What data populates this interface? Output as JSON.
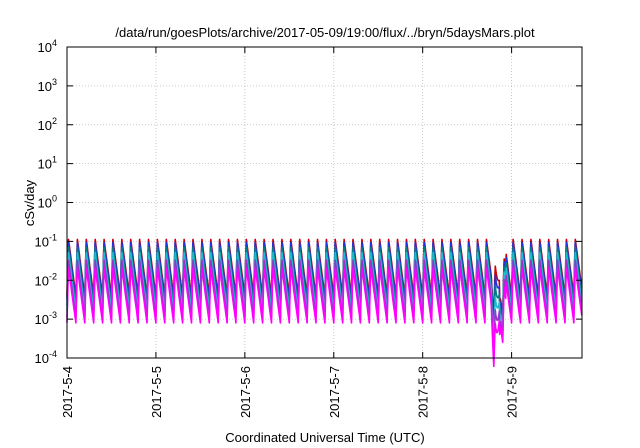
{
  "chart_data": {
    "type": "line",
    "title": "/data/run/goesPlots/archive/2017-05-09/19:00/flux/../bryn/5daysMars.plot",
    "xlabel": "Coordinated Universal Time (UTC)",
    "ylabel": "cSv/day",
    "y_scale": "log",
    "ylim": [
      0.0001,
      10000
    ],
    "y_ticks": [
      {
        "value": 0.0001,
        "base": "10",
        "exp": "-4"
      },
      {
        "value": 0.001,
        "base": "10",
        "exp": "-3"
      },
      {
        "value": 0.01,
        "base": "10",
        "exp": "-2"
      },
      {
        "value": 0.1,
        "base": "10",
        "exp": "-1"
      },
      {
        "value": 1,
        "base": "10",
        "exp": "0"
      },
      {
        "value": 10,
        "base": "10",
        "exp": "1"
      },
      {
        "value": 100,
        "base": "10",
        "exp": "2"
      },
      {
        "value": 1000,
        "base": "10",
        "exp": "3"
      },
      {
        "value": 10000,
        "base": "10",
        "exp": "4"
      }
    ],
    "x_start": "2017-05-04T00:00",
    "x_end": "2017-05-09T19:00",
    "x_ticks": [
      {
        "label": "2017-5-4",
        "value": "2017-05-04T00:00"
      },
      {
        "label": "2017-5-5",
        "value": "2017-05-05T00:00"
      },
      {
        "label": "2017-5-6",
        "value": "2017-05-06T00:00"
      },
      {
        "label": "2017-5-7",
        "value": "2017-05-07T00:00"
      },
      {
        "label": "2017-5-8",
        "value": "2017-05-08T00:00"
      },
      {
        "label": "2017-5-9",
        "value": "2017-05-09T00:00"
      }
    ],
    "grid": true,
    "cycle_hours": 2.4,
    "dip_interval": {
      "start": "2017-05-08T18:30",
      "end": "2017-05-08T22:30"
    },
    "series": [
      {
        "color": "#cc0000",
        "peak": 0.12,
        "trough": 0.004
      },
      {
        "color": "#2233dd",
        "peak": 0.1,
        "trough": 0.0032
      },
      {
        "color": "#008080",
        "peak": 0.075,
        "trough": 0.0022
      },
      {
        "color": "#22bbcc",
        "peak": 0.055,
        "trough": 0.0016
      },
      {
        "color": "#9933cc",
        "peak": 0.035,
        "trough": 0.0011
      },
      {
        "color": "#ff00ff",
        "peak": 0.022,
        "trough": 0.0008
      }
    ]
  }
}
